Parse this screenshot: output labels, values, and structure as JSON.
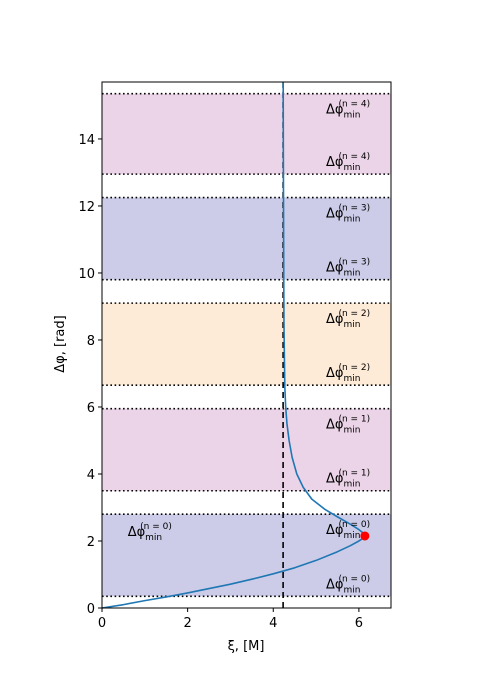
{
  "chart_data": {
    "type": "line",
    "title": "",
    "xlabel": "ξ, [M]",
    "ylabel": "Δφ, [rad]",
    "xlim": [
      0,
      6.75
    ],
    "ylim": [
      0,
      15.7
    ],
    "x_ticks": [
      "0",
      "2",
      "4",
      "6"
    ],
    "y_ticks": [
      "0",
      "2",
      "4",
      "6",
      "8",
      "10",
      "12",
      "14"
    ],
    "grid": false,
    "vertical_line": {
      "x": 4.23,
      "style": "dashed",
      "color": "#000000"
    },
    "bands": [
      {
        "y0": 0.35,
        "y1": 2.8,
        "color": "#cccce8",
        "lower_label": "Δφ",
        "lower_label_sub": "min",
        "lower_label_sup": "(n = 0)",
        "upper_label": "Δφ",
        "upper_label_sub": "min",
        "upper_label_sup": "(n = 0)"
      },
      {
        "y0": 3.5,
        "y1": 5.95,
        "color": "#ecd4e8",
        "lower_label": "Δφ",
        "lower_label_sub": "min",
        "lower_label_sup": "(n = 1)",
        "upper_label": "Δφ",
        "upper_label_sub": "min",
        "upper_label_sup": "(n = 1)"
      },
      {
        "y0": 6.65,
        "y1": 9.1,
        "color": "#fdebd8",
        "lower_label": "Δφ",
        "lower_label_sub": "min",
        "lower_label_sup": "(n = 2)",
        "upper_label": "Δφ",
        "upper_label_sub": "min",
        "upper_label_sup": "(n = 2)"
      },
      {
        "y0": 9.8,
        "y1": 12.25,
        "color": "#cccce8",
        "lower_label": "Δφ",
        "lower_label_sub": "min",
        "lower_label_sup": "(n = 3)",
        "upper_label": "Δφ",
        "upper_label_sub": "min",
        "upper_label_sup": "(n = 3)"
      },
      {
        "y0": 12.95,
        "y1": 15.35,
        "color": "#ecd4e8",
        "lower_label": "Δφ",
        "lower_label_sub": "min",
        "lower_label_sup": "(n = 4)",
        "upper_label": "Δφ",
        "upper_label_sub": "min",
        "upper_label_sup": "(n = 4)"
      }
    ],
    "series": [
      {
        "color": "#1f77b4",
        "points": [
          [
            0.0,
            0.0
          ],
          [
            0.5,
            0.1
          ],
          [
            1.0,
            0.22
          ],
          [
            1.5,
            0.33
          ],
          [
            2.0,
            0.45
          ],
          [
            2.5,
            0.58
          ],
          [
            3.0,
            0.71
          ],
          [
            3.5,
            0.86
          ],
          [
            4.0,
            1.02
          ],
          [
            4.5,
            1.2
          ],
          [
            5.0,
            1.42
          ],
          [
            5.5,
            1.68
          ],
          [
            5.8,
            1.86
          ],
          [
            6.0,
            2.0
          ],
          [
            6.1,
            2.08
          ],
          [
            6.14,
            2.15
          ],
          [
            6.1,
            2.24
          ],
          [
            6.0,
            2.34
          ],
          [
            5.8,
            2.5
          ],
          [
            5.5,
            2.72
          ],
          [
            5.2,
            2.95
          ],
          [
            4.9,
            3.25
          ],
          [
            4.7,
            3.6
          ],
          [
            4.55,
            4.0
          ],
          [
            4.44,
            4.5
          ],
          [
            4.37,
            5.0
          ],
          [
            4.32,
            5.5
          ],
          [
            4.29,
            6.0
          ],
          [
            4.27,
            6.6
          ],
          [
            4.26,
            7.5
          ],
          [
            4.25,
            8.5
          ],
          [
            4.245,
            10.0
          ],
          [
            4.24,
            12.0
          ],
          [
            4.235,
            14.0
          ],
          [
            4.232,
            15.7
          ]
        ]
      }
    ],
    "marker": {
      "x": 6.14,
      "y": 2.15,
      "color": "#ff0000"
    },
    "annotation": {
      "x": 0.6,
      "y": 2.3,
      "text": "Δφ",
      "sub": "min",
      "sup": "(n = 0)"
    }
  }
}
